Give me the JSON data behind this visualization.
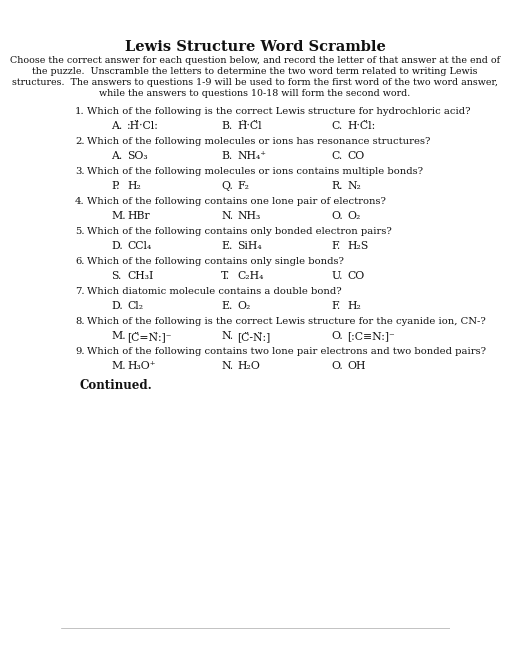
{
  "title": "Lewis Structure Word Scramble",
  "intro_lines": [
    "Choose the correct answer for each question below, and record the letter of that answer at the end of",
    "the puzzle.  Unscramble the letters to determine the two word term related to writing Lewis",
    "structures.  The answers to questions 1-9 will be used to form the first word of the two word answer,",
    "while the answers to questions 10-18 will form the second word."
  ],
  "questions": [
    {
      "num": "1.",
      "text": "Which of the following is the correct Lewis structure for hydrochloric acid?",
      "answers": [
        {
          "letter": "A.",
          "formula": ":Ḧ·Cl:"
        },
        {
          "letter": "B.",
          "formula": "Ḧ·C̈l"
        },
        {
          "letter": "C.",
          "formula": "H·C̈l:"
        }
      ]
    },
    {
      "num": "2.",
      "text": "Which of the following molecules or ions has resonance structures?",
      "answers": [
        {
          "letter": "A.",
          "formula": "SO₃"
        },
        {
          "letter": "B.",
          "formula": "NH₄⁺"
        },
        {
          "letter": "C.",
          "formula": "CO"
        }
      ]
    },
    {
      "num": "3.",
      "text": "Which of the following molecules or ions contains multiple bonds?",
      "answers": [
        {
          "letter": "P.",
          "formula": "H₂"
        },
        {
          "letter": "Q.",
          "formula": "F₂"
        },
        {
          "letter": "R.",
          "formula": "N₂"
        }
      ]
    },
    {
      "num": "4.",
      "text": "Which of the following contains one lone pair of electrons?",
      "answers": [
        {
          "letter": "M.",
          "formula": "HBr"
        },
        {
          "letter": "N.",
          "formula": "NH₃"
        },
        {
          "letter": "O.",
          "formula": "O₂"
        }
      ]
    },
    {
      "num": "5.",
      "text": "Which of the following contains only bonded electron pairs?",
      "answers": [
        {
          "letter": "D.",
          "formula": "CCl₄"
        },
        {
          "letter": "E.",
          "formula": "SiH₄"
        },
        {
          "letter": "F.",
          "formula": "H₂S"
        }
      ]
    },
    {
      "num": "6.",
      "text": "Which of the following contains only single bonds?",
      "answers": [
        {
          "letter": "S.",
          "formula": "CH₃I"
        },
        {
          "letter": "T.",
          "formula": "C₂H₄"
        },
        {
          "letter": "U.",
          "formula": "CO"
        }
      ]
    },
    {
      "num": "7.",
      "text": "Which diatomic molecule contains a double bond?",
      "answers": [
        {
          "letter": "D.",
          "formula": "Cl₂"
        },
        {
          "letter": "E.",
          "formula": "O₂"
        },
        {
          "letter": "F.",
          "formula": "H₂"
        }
      ]
    },
    {
      "num": "8.",
      "text": "Which of the following is the correct Lewis structure for the cyanide ion, CN-?",
      "answers": [
        {
          "letter": "M.",
          "formula": "[C̈=N̈:]⁻"
        },
        {
          "letter": "N.",
          "formula": "[C̈-N̈:]"
        },
        {
          "letter": "O.",
          "formula": "[:C≡N:]⁻"
        }
      ]
    },
    {
      "num": "9.",
      "text": "Which of the following contains two lone pair electrons and two bonded pairs?",
      "answers": [
        {
          "letter": "M.",
          "formula": "H₃O⁺"
        },
        {
          "letter": "N.",
          "formula": "H₂O"
        },
        {
          "letter": "O.",
          "formula": "OH"
        }
      ]
    }
  ],
  "continued": "Continued.",
  "title_fontsize": 10.5,
  "intro_fontsize": 6.8,
  "question_fontsize": 7.2,
  "answer_fontsize": 7.8,
  "continued_fontsize": 8.5,
  "text_color": "#111111"
}
